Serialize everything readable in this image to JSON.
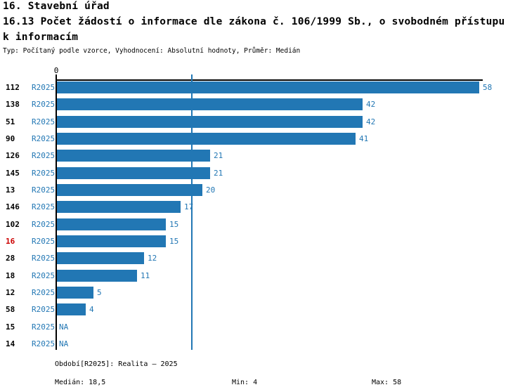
{
  "header": {
    "section_title": "16. Stavební úřad",
    "title_line1": "16.13 Počet žádostí o informace dle zákona č. 106/1999 Sb., o svobodném přístupu",
    "title_line2": "k informacím",
    "meta": "Typ: Počítaný podle vzorce, Vyhodnocení: Absolutní hodnoty, Průměr: Medián"
  },
  "chart_data": {
    "type": "bar",
    "orientation": "horizontal",
    "title": "16.13 Počet žádostí o informace dle zákona č. 106/1999 Sb., o svobodném přístupu k informacím",
    "axis_zero_label": "0",
    "xlim": [
      0,
      58
    ],
    "grid": false,
    "legend_position": "none",
    "categories": [
      "112",
      "138",
      "51",
      "90",
      "126",
      "145",
      "13",
      "146",
      "102",
      "16",
      "28",
      "18",
      "12",
      "58",
      "15",
      "14"
    ],
    "series": [
      {
        "name": "R2025",
        "values": [
          58,
          42,
          42,
          41,
          21,
          21,
          20,
          17,
          15,
          15,
          12,
          11,
          5,
          4,
          null,
          null
        ]
      }
    ],
    "value_labels": [
      "58",
      "42",
      "42",
      "41",
      "21",
      "21",
      "20",
      "17",
      "15",
      "15",
      "12",
      "11",
      "5",
      "4",
      "NA",
      "NA"
    ],
    "row_series_label": "R2025",
    "highlighted_category": "16",
    "median": 18.5,
    "bar_color": "#2277b4",
    "label_color": "#2277b4",
    "highlight_color": "#cc0000"
  },
  "footer": {
    "period_line": "Období[R2025]: Realita – 2025",
    "median_label": "Medián: 18,5",
    "min_label": "Min: 4",
    "max_label": "Max: 58"
  }
}
